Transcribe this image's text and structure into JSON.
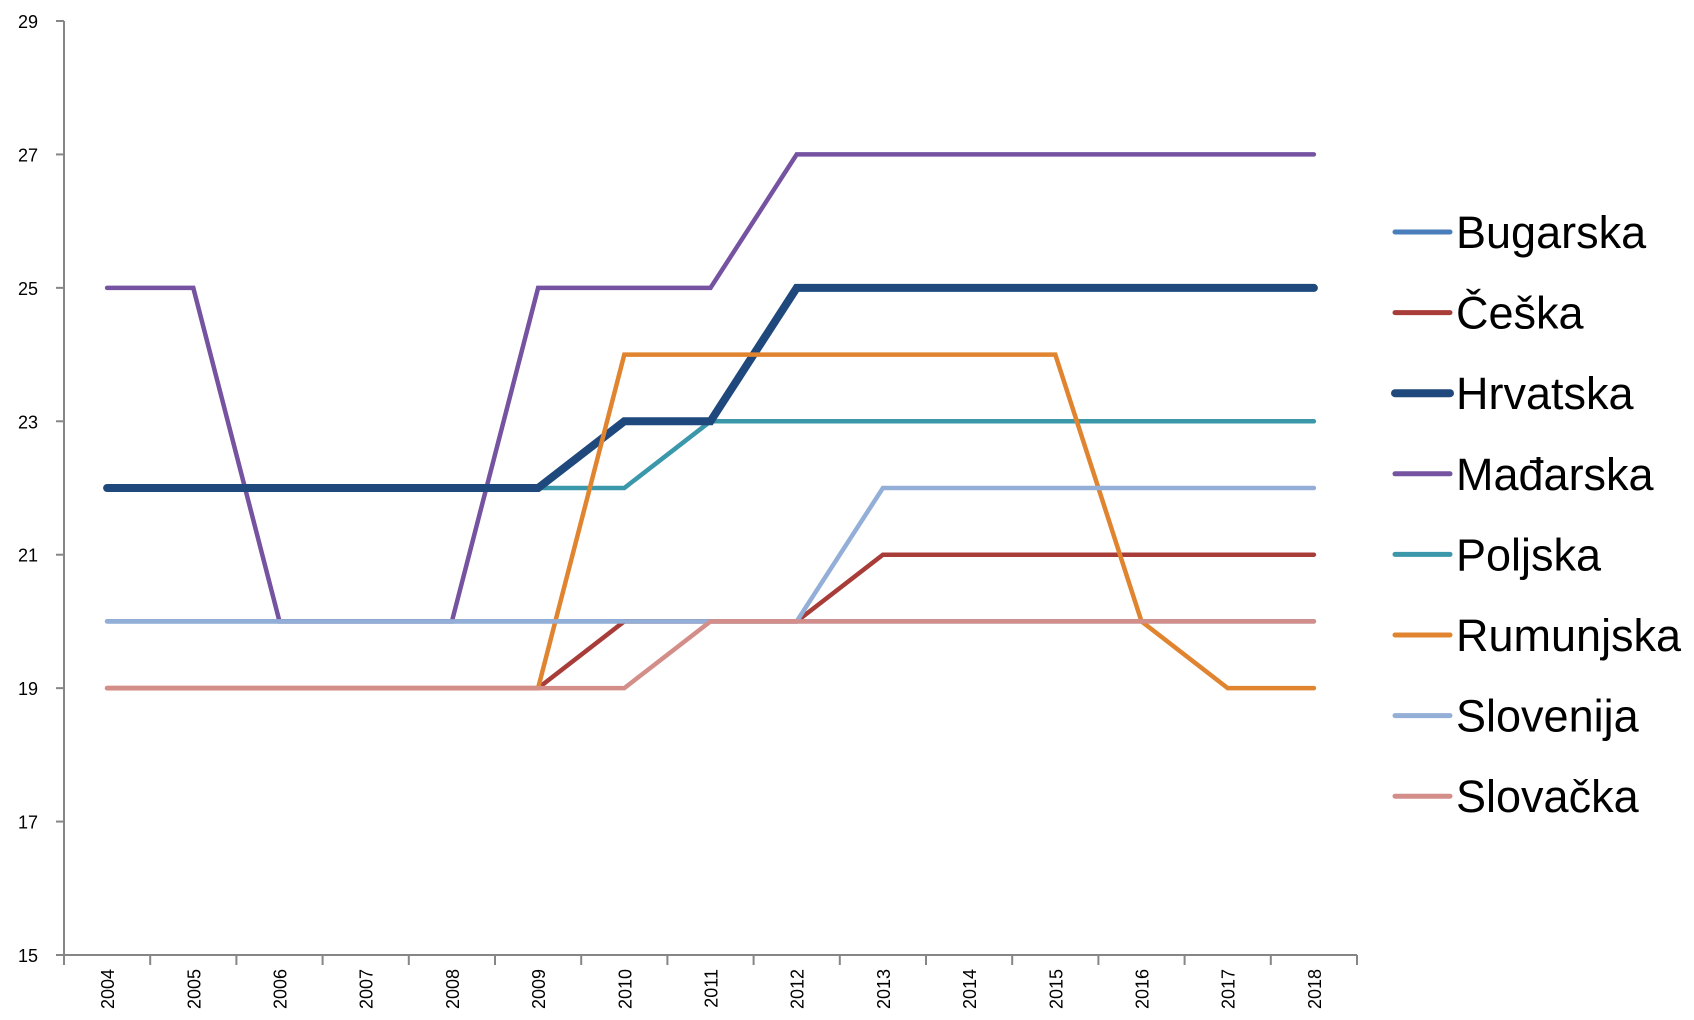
{
  "chart_data": {
    "type": "line",
    "title": "",
    "xlabel": "",
    "ylabel": "",
    "ylim": [
      15,
      29
    ],
    "y_ticks": [
      15,
      17,
      19,
      21,
      23,
      25,
      27,
      29
    ],
    "x": [
      "2004",
      "2005",
      "2006",
      "2007",
      "2008",
      "2009",
      "2010",
      "2011",
      "2012",
      "2013",
      "2014",
      "2015",
      "2016",
      "2017",
      "2018"
    ],
    "grid": false,
    "legend_position": "right",
    "series": [
      {
        "name": "Bugarska",
        "color": "#4A7EBB",
        "values": [
          20,
          20,
          20,
          20,
          20,
          20,
          20,
          20,
          20,
          20,
          20,
          20,
          20,
          20,
          20
        ]
      },
      {
        "name": "Češka",
        "color": "#A83C38",
        "values": [
          19,
          19,
          19,
          19,
          19,
          19,
          20,
          20,
          20,
          21,
          21,
          21,
          21,
          21,
          21
        ]
      },
      {
        "name": "Mađarska",
        "color": "#7553A0",
        "values": [
          25,
          25,
          20,
          20,
          20,
          25,
          25,
          25,
          27,
          27,
          27,
          27,
          27,
          27,
          27
        ]
      },
      {
        "name": "Poljska",
        "color": "#3B98AB",
        "values": [
          22,
          22,
          22,
          22,
          22,
          22,
          22,
          23,
          23,
          23,
          23,
          23,
          23,
          23,
          23
        ]
      },
      {
        "name": "Hrvatska",
        "color": "#1F497D",
        "values": [
          22,
          22,
          22,
          22,
          22,
          22,
          23,
          23,
          25,
          25,
          25,
          25,
          25,
          25,
          25
        ]
      },
      {
        "name": "Rumunjska",
        "color": "#E0842F",
        "values": [
          19,
          19,
          19,
          19,
          19,
          19,
          24,
          24,
          24,
          24,
          24,
          24,
          20,
          19,
          19
        ]
      },
      {
        "name": "Slovenija",
        "color": "#93AFD8",
        "values": [
          20,
          20,
          20,
          20,
          20,
          20,
          20,
          20,
          20,
          22,
          22,
          22,
          22,
          22,
          22
        ]
      },
      {
        "name": "Slovačka",
        "color": "#D48E8A",
        "values": [
          19,
          19,
          19,
          19,
          19,
          19,
          19,
          20,
          20,
          20,
          20,
          20,
          20,
          20,
          20
        ]
      }
    ],
    "legend_order": [
      "Bugarska",
      "Češka",
      "Hrvatska",
      "Mađarska",
      "Poljska",
      "Rumunjska",
      "Slovenija",
      "Slovačka"
    ]
  }
}
